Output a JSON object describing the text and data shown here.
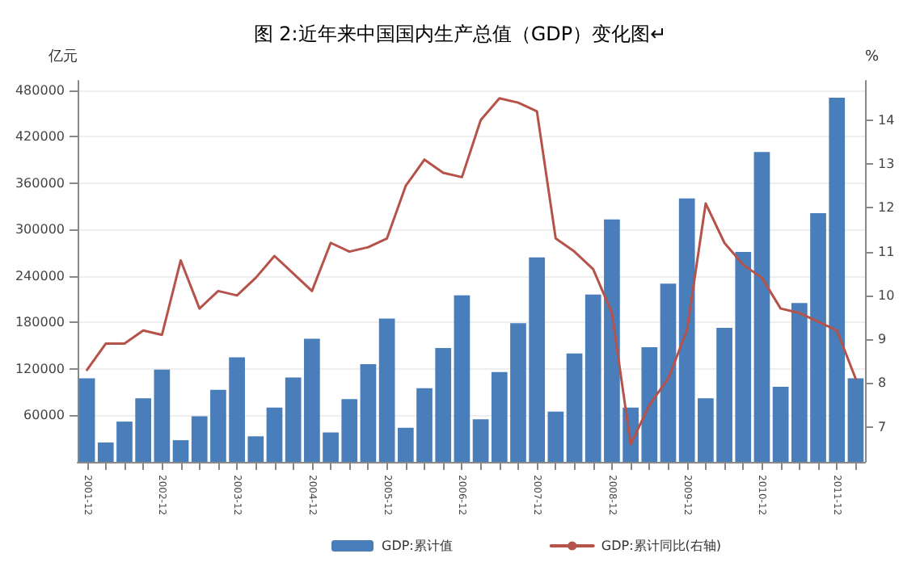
{
  "chart_data": {
    "type": "bar",
    "title": "图 2:近年来中国国内生产总值（GDP）变化图↵",
    "categories": [
      "2001-12",
      null,
      null,
      null,
      "2002-12",
      null,
      null,
      null,
      "2003-12",
      null,
      null,
      null,
      "2004-12",
      null,
      null,
      null,
      "2005-12",
      null,
      null,
      null,
      "2006-12",
      null,
      null,
      null,
      "2007-12",
      null,
      null,
      null,
      "2008-12",
      null,
      null,
      null,
      "2009-12",
      null,
      null,
      null,
      "2010-12",
      null,
      null,
      null,
      "2011-12",
      null
    ],
    "ylabel": "亿元",
    "y2label": "%",
    "series": [
      {
        "name": "GDP:累计值",
        "color": "#4a7ebb",
        "values": [
          108000,
          25000,
          52000,
          82000,
          119000,
          28000,
          59000,
          93000,
          135000,
          33000,
          70000,
          109000,
          159000,
          38000,
          81000,
          126000,
          185000,
          44000,
          95000,
          147000,
          215000,
          55000,
          116000,
          179000,
          264000,
          65000,
          140000,
          216000,
          313000,
          70000,
          148000,
          230000,
          340000,
          82000,
          173000,
          271000,
          400000,
          97000,
          205000,
          321000,
          470000,
          108000
        ]
      },
      {
        "name": "GDP:累计同比(右轴)",
        "type": "line",
        "axis": "y2",
        "color": "#b5524a",
        "values": [
          8.3,
          8.9,
          8.9,
          9.2,
          9.1,
          10.8,
          9.7,
          10.1,
          10.0,
          10.4,
          10.9,
          10.5,
          10.1,
          11.2,
          11.0,
          11.1,
          11.3,
          12.5,
          13.1,
          12.8,
          12.7,
          14.0,
          14.5,
          14.4,
          14.2,
          11.3,
          11.0,
          10.6,
          9.6,
          6.6,
          7.5,
          8.1,
          9.2,
          12.1,
          11.2,
          10.7,
          10.4,
          9.7,
          9.6,
          9.4,
          9.2,
          8.1
        ]
      }
    ],
    "ylim": [
      0,
      492000
    ],
    "yticks": [
      60000,
      120000,
      180000,
      240000,
      300000,
      360000,
      420000,
      480000
    ],
    "y2lim": [
      6.2,
      14.9
    ],
    "y2ticks": [
      7,
      8,
      9,
      10,
      11,
      12,
      13,
      14
    ],
    "grid": "y",
    "legend": "bottom",
    "marker": "none",
    "line_style": "solid"
  }
}
